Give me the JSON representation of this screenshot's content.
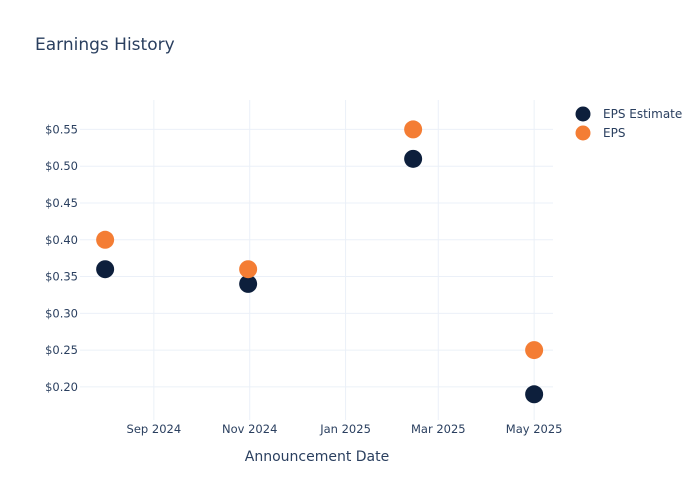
{
  "chart_data": {
    "type": "scatter",
    "title": "Earnings History",
    "xlabel": "Announcement Date",
    "ylabel": "",
    "x_ticks": [
      {
        "date": "2024-09-01",
        "label": "Sep 2024"
      },
      {
        "date": "2024-11-01",
        "label": "Nov 2024"
      },
      {
        "date": "2025-01-01",
        "label": "Jan 2025"
      },
      {
        "date": "2025-03-01",
        "label": "Mar 2025"
      },
      {
        "date": "2025-05-01",
        "label": "May 2025"
      }
    ],
    "xlim": [
      "2024-07-16",
      "2025-05-13"
    ],
    "y_ticks": [
      0.2,
      0.25,
      0.3,
      0.35,
      0.4,
      0.45,
      0.5,
      0.55
    ],
    "y_tick_labels": [
      "$0.20",
      "$0.25",
      "$0.30",
      "$0.35",
      "$0.40",
      "$0.45",
      "$0.50",
      "$0.55"
    ],
    "ylim": [
      0.155,
      0.59
    ],
    "grid": true,
    "legend_position": "top-right",
    "series": [
      {
        "name": "EPS Estimate",
        "color": "#0d1f3c",
        "points": [
          {
            "x": "2024-08-01",
            "y": 0.36
          },
          {
            "x": "2024-10-31",
            "y": 0.34
          },
          {
            "x": "2025-02-13",
            "y": 0.51
          },
          {
            "x": "2025-05-01",
            "y": 0.19
          }
        ]
      },
      {
        "name": "EPS",
        "color": "#f47d34",
        "points": [
          {
            "x": "2024-08-01",
            "y": 0.4
          },
          {
            "x": "2024-10-31",
            "y": 0.36
          },
          {
            "x": "2025-02-13",
            "y": 0.55
          },
          {
            "x": "2025-05-01",
            "y": 0.25
          }
        ]
      }
    ]
  }
}
